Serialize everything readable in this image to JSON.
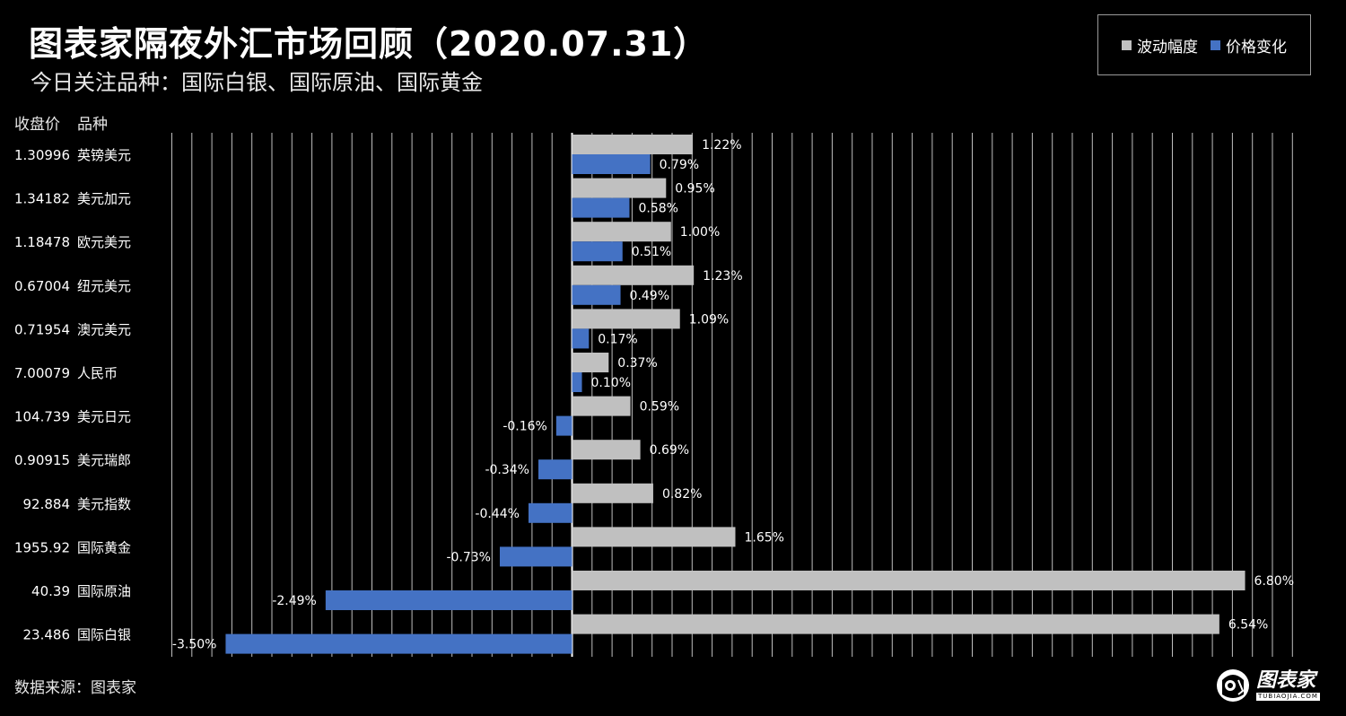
{
  "title": "图表家隔夜外汇市场回顾（2020.07.31）",
  "subtitle": "今日关注品种：国际白银、国际原油、国际黄金",
  "headers": {
    "close": "收盘价",
    "product": "品种"
  },
  "footer": {
    "source": "数据来源：图表家"
  },
  "brand": {
    "name": "图表家",
    "url": "TUBIAOJIA.COM"
  },
  "colors": {
    "volatility": "#c0c0c0",
    "change": "#4472c4",
    "grid": "#ffffff",
    "background": "#000000"
  },
  "chart_data": {
    "type": "bar",
    "orientation": "horizontal",
    "categories": [
      "英镑美元",
      "美元加元",
      "欧元美元",
      "纽元美元",
      "澳元美元",
      "人民币",
      "美元日元",
      "美元瑞郎",
      "美元指数",
      "国际黄金",
      "国际原油",
      "国际白银"
    ],
    "close_prices": [
      "1.30996",
      "1.34182",
      "1.18478",
      "0.67004",
      "0.71954",
      "7.00079",
      "104.739",
      "0.90915",
      "92.884",
      "1955.92",
      "40.39",
      "23.486"
    ],
    "series": [
      {
        "name": "波动幅度",
        "color": "#c0c0c0",
        "values": [
          1.22,
          0.95,
          1.0,
          1.23,
          1.09,
          0.37,
          0.59,
          0.69,
          0.82,
          1.65,
          6.8,
          6.54
        ],
        "labels": [
          "1.22%",
          "0.95%",
          "1.00%",
          "1.23%",
          "1.09%",
          "0.37%",
          "0.59%",
          "0.69%",
          "0.82%",
          "1.65%",
          "6.80%",
          "6.54%"
        ]
      },
      {
        "name": "价格变化",
        "color": "#4472c4",
        "values": [
          0.79,
          0.58,
          0.51,
          0.49,
          0.17,
          0.1,
          -0.16,
          -0.34,
          -0.44,
          -0.73,
          -2.49,
          -3.5
        ],
        "labels": [
          "0.79%",
          "0.58%",
          "0.51%",
          "0.49%",
          "0.17%",
          "0.10%",
          "-0.16%",
          "-0.34%",
          "-0.44%",
          "-0.73%",
          "-2.49%",
          "-3.50%"
        ]
      }
    ],
    "xlim": [
      -4.2,
      7.4
    ],
    "grid": true,
    "legend_position": "top-right",
    "unit": "%"
  }
}
